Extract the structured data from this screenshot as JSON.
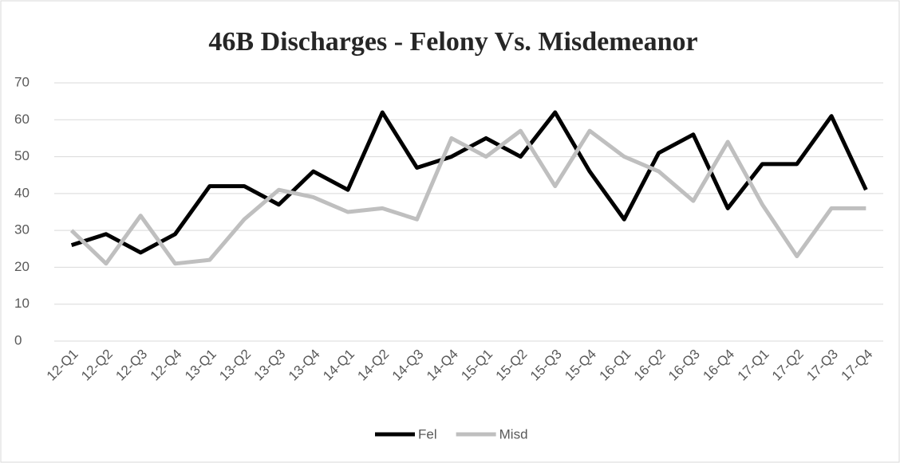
{
  "chart_data": {
    "type": "line",
    "title": "46B Discharges - Felony Vs. Misdemeanor",
    "categories": [
      "12-Q1",
      "12-Q2",
      "12-Q3",
      "12-Q4",
      "13-Q1",
      "13-Q2",
      "13-Q3",
      "13-Q4",
      "14-Q1",
      "14-Q2",
      "14-Q3",
      "14-Q4",
      "15-Q1",
      "15-Q2",
      "15-Q3",
      "15-Q4",
      "16-Q1",
      "16-Q2",
      "16-Q3",
      "16-Q4",
      "17-Q1",
      "17-Q2",
      "17-Q3",
      "17-Q4"
    ],
    "series": [
      {
        "name": "Fel",
        "color": "#000000",
        "values": [
          26,
          29,
          24,
          29,
          42,
          42,
          37,
          46,
          41,
          62,
          47,
          50,
          55,
          50,
          62,
          46,
          33,
          51,
          56,
          36,
          48,
          48,
          61,
          41
        ]
      },
      {
        "name": "Misd",
        "color": "#bfbfbf",
        "values": [
          30,
          21,
          34,
          21,
          22,
          33,
          41,
          39,
          35,
          36,
          33,
          55,
          50,
          57,
          42,
          57,
          50,
          46,
          38,
          54,
          37,
          23,
          36,
          36
        ]
      }
    ],
    "ylim": [
      0,
      70
    ],
    "yticks": [
      0,
      10,
      20,
      30,
      40,
      50,
      60,
      70
    ],
    "grid": true,
    "legend": "bottom"
  }
}
